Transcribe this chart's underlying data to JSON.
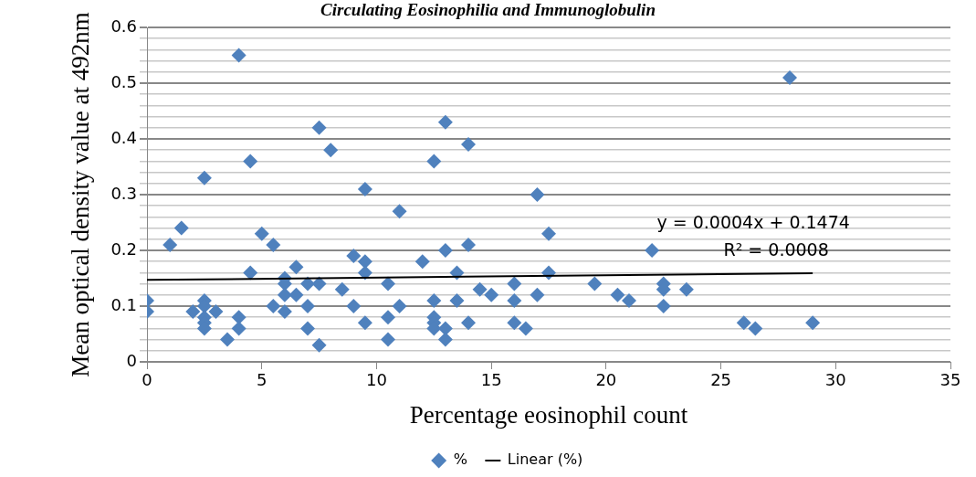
{
  "chart_data": {
    "type": "scatter",
    "title": "Circulating Eosinophilia and Immunoglobulin",
    "xlabel": "Percentage eosinophil count",
    "ylabel": "Mean optical density value at 492nm",
    "xlim": [
      0,
      35
    ],
    "xticks": [
      0,
      5,
      10,
      15,
      20,
      25,
      30,
      35
    ],
    "ylim": [
      0,
      0.6
    ],
    "yticks": [
      0,
      {
        "value": 0.02,
        "label": null
      },
      {
        "value": 0.04,
        "label": null
      },
      {
        "value": 0.06,
        "label": null
      },
      {
        "value": 0.08,
        "label": null
      },
      0.1,
      {
        "value": 0.12,
        "label": null
      },
      {
        "value": 0.14,
        "label": null
      },
      {
        "value": 0.16,
        "label": null
      },
      {
        "value": 0.18,
        "label": null
      },
      0.2,
      {
        "value": 0.22,
        "label": null
      },
      {
        "value": 0.24,
        "label": null
      },
      {
        "value": 0.26,
        "label": null
      },
      {
        "value": 0.28,
        "label": null
      },
      0.3,
      {
        "value": 0.32,
        "label": null
      },
      {
        "value": 0.34,
        "label": null
      },
      {
        "value": 0.36,
        "label": null
      },
      {
        "value": 0.38,
        "label": null
      },
      0.4,
      {
        "value": 0.42,
        "label": null
      },
      {
        "value": 0.44,
        "label": null
      },
      {
        "value": 0.46,
        "label": null
      },
      {
        "value": 0.48,
        "label": null
      },
      0.5,
      {
        "value": 0.52,
        "label": null
      },
      {
        "value": 0.54,
        "label": null
      },
      {
        "value": 0.56,
        "label": null
      },
      {
        "value": 0.58,
        "label": null
      },
      0.6
    ],
    "grid": "y",
    "legend": "bottom",
    "annotations": [
      "y = 0.0004x + 0.1474",
      "R² = 0.0008"
    ],
    "series": [
      {
        "name": "%",
        "color": "#4f81bd",
        "marker": "diamond",
        "x": [
          0,
          0,
          1,
          1.5,
          2,
          2.5,
          2.5,
          2.5,
          2.5,
          2.5,
          2.5,
          3,
          3.5,
          4,
          4,
          4,
          4.5,
          4.5,
          5,
          5.5,
          5.5,
          6,
          6,
          6,
          6,
          6.5,
          6.5,
          7,
          7,
          7,
          7.5,
          7.5,
          7.5,
          8,
          8.5,
          9,
          9,
          9.5,
          9.5,
          9.5,
          9.5,
          10.5,
          10.5,
          10.5,
          11,
          11,
          12,
          12.5,
          12.5,
          12.5,
          12.5,
          12.5,
          13,
          13,
          13,
          13,
          13.5,
          13.5,
          14,
          14,
          14,
          14.5,
          15,
          16,
          16,
          16,
          16.5,
          17,
          17,
          17.5,
          17.5,
          19.5,
          20.5,
          21,
          22,
          22.5,
          22.5,
          22.5,
          23.5,
          26,
          26.5,
          28,
          29
        ],
        "values": [
          0.11,
          0.09,
          0.21,
          0.24,
          0.09,
          0.33,
          0.11,
          0.1,
          0.08,
          0.07,
          0.06,
          0.09,
          0.04,
          0.55,
          0.08,
          0.06,
          0.36,
          0.16,
          0.23,
          0.21,
          0.1,
          0.15,
          0.14,
          0.12,
          0.09,
          0.17,
          0.12,
          0.14,
          0.1,
          0.06,
          0.42,
          0.14,
          0.03,
          0.38,
          0.13,
          0.19,
          0.1,
          0.31,
          0.18,
          0.16,
          0.07,
          0.14,
          0.08,
          0.04,
          0.27,
          0.1,
          0.18,
          0.36,
          0.11,
          0.08,
          0.07,
          0.06,
          0.43,
          0.2,
          0.06,
          0.04,
          0.16,
          0.11,
          0.39,
          0.21,
          0.07,
          0.13,
          0.12,
          0.14,
          0.11,
          0.07,
          0.06,
          0.3,
          0.12,
          0.23,
          0.16,
          0.14,
          0.12,
          0.11,
          0.2,
          0.14,
          0.13,
          0.1,
          0.13,
          0.07,
          0.06,
          0.51,
          0.07
        ]
      },
      {
        "name": "Linear (%)",
        "type": "line",
        "color": "#000000",
        "x": [
          0,
          29
        ],
        "values": [
          0.147,
          0.159
        ]
      }
    ]
  }
}
